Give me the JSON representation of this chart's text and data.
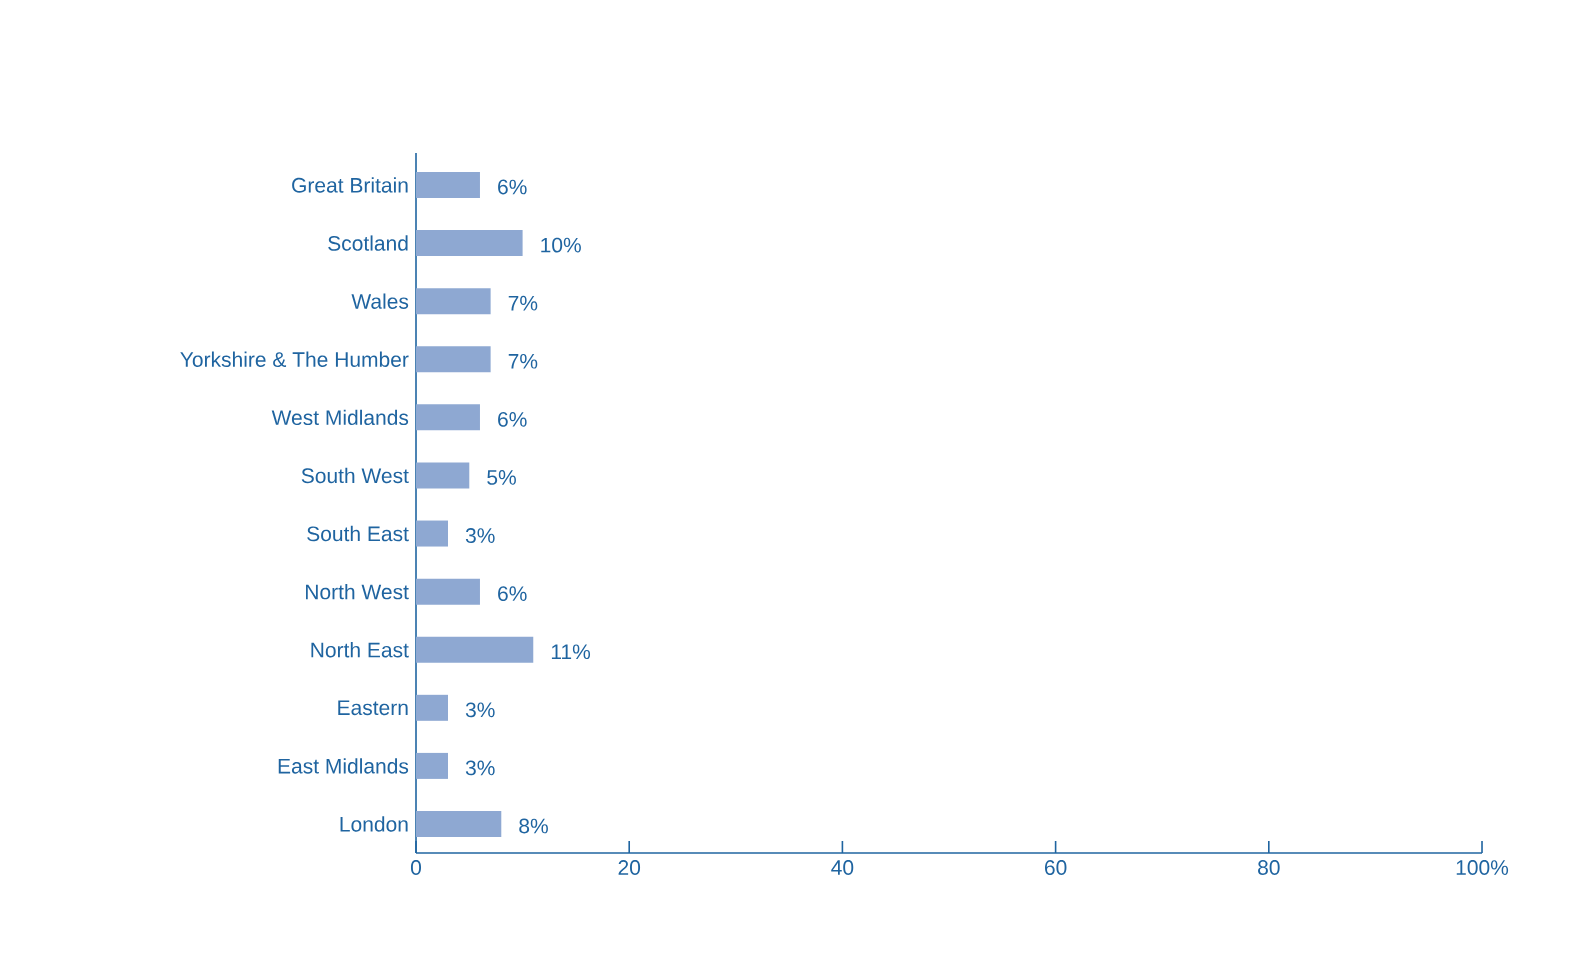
{
  "chart_data": {
    "type": "bar",
    "orientation": "horizontal",
    "categories": [
      "Great Britain",
      "Scotland",
      "Wales",
      "Yorkshire & The Humber",
      "West Midlands",
      "South West",
      "South East",
      "North West",
      "North East",
      "Eastern",
      "East Midlands",
      "London"
    ],
    "values": [
      6,
      10,
      7,
      7,
      6,
      5,
      3,
      6,
      11,
      3,
      3,
      8
    ],
    "value_labels": [
      "6%",
      "10%",
      "7%",
      "7%",
      "6%",
      "5%",
      "3%",
      "6%",
      "11%",
      "3%",
      "3%",
      "8%"
    ],
    "color": "#8ea8d2",
    "xlim": [
      0,
      100
    ],
    "xticks": [
      0,
      20,
      40,
      60,
      80,
      {
        "value": 100,
        "label": "100%"
      }
    ]
  }
}
